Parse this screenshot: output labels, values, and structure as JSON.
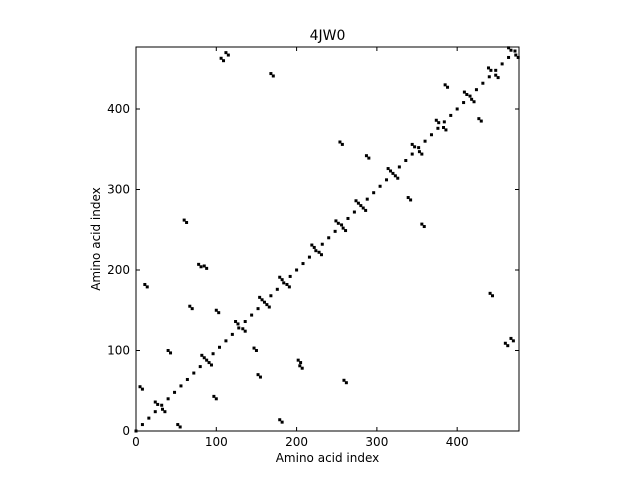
{
  "chart_data": {
    "type": "scatter",
    "title": "4JW0",
    "x_label": "Amino acid index",
    "y_label": "Amino acid index",
    "xlim": [
      0,
      477
    ],
    "ylim": [
      0,
      477
    ],
    "xticks": [
      0,
      100,
      200,
      300,
      400
    ],
    "yticks": [
      0,
      100,
      200,
      300,
      400
    ],
    "series": [
      {
        "color": "#000000",
        "x": [
          0,
          8,
          16,
          24,
          32,
          40,
          48,
          56,
          64,
          72,
          80,
          88,
          96,
          104,
          112,
          120,
          128,
          136,
          144,
          152,
          160,
          168,
          176,
          184,
          192,
          200,
          208,
          216,
          224,
          232,
          240,
          248,
          256,
          264,
          272,
          280,
          288,
          296,
          304,
          312,
          320,
          328,
          336,
          344,
          352,
          360,
          368,
          376,
          384,
          392,
          400,
          408,
          416,
          424,
          432,
          440,
          448,
          456,
          464,
          472,
          24,
          27,
          33,
          36,
          82,
          85,
          91,
          94,
          124,
          127,
          133,
          136,
          154,
          157,
          163,
          166,
          179,
          182,
          188,
          191,
          219,
          222,
          228,
          231,
          249,
          252,
          258,
          261,
          274,
          277,
          283,
          286,
          314,
          317,
          323,
          326,
          344,
          347,
          353,
          356,
          374,
          377,
          383,
          386,
          409,
          412,
          418,
          421,
          439,
          442,
          448,
          451,
          464,
          467,
          473,
          476,
          5,
          8,
          55,
          52,
          11,
          14,
          182,
          179,
          60,
          63,
          262,
          259,
          85,
          88,
          205,
          202,
          112,
          115,
          470,
          467,
          168,
          171,
          444,
          441,
          152,
          155,
          70,
          67,
          204,
          207,
          81,
          78,
          106,
          109,
          463,
          460,
          339,
          342,
          290,
          287,
          254,
          257,
          359,
          356,
          100,
          103,
          150,
          147,
          40,
          43,
          100,
          97,
          385,
          388,
          430,
          427
        ],
        "y": [
          0,
          8,
          16,
          24,
          32,
          40,
          48,
          56,
          64,
          72,
          80,
          88,
          96,
          104,
          112,
          120,
          128,
          136,
          144,
          152,
          160,
          168,
          176,
          184,
          192,
          200,
          208,
          216,
          224,
          232,
          240,
          248,
          256,
          264,
          272,
          280,
          288,
          296,
          304,
          312,
          320,
          328,
          336,
          344,
          352,
          360,
          368,
          376,
          384,
          392,
          400,
          408,
          416,
          424,
          432,
          440,
          448,
          456,
          464,
          472,
          36,
          33,
          27,
          24,
          94,
          91,
          85,
          82,
          136,
          133,
          127,
          124,
          166,
          163,
          157,
          154,
          191,
          188,
          182,
          179,
          231,
          228,
          222,
          219,
          261,
          258,
          252,
          249,
          286,
          283,
          277,
          274,
          326,
          323,
          317,
          314,
          356,
          353,
          347,
          344,
          386,
          383,
          377,
          374,
          421,
          418,
          412,
          409,
          451,
          448,
          442,
          439,
          476,
          473,
          467,
          464,
          55,
          52,
          5,
          8,
          182,
          179,
          11,
          14,
          262,
          259,
          60,
          63,
          205,
          202,
          85,
          88,
          470,
          467,
          112,
          115,
          444,
          441,
          168,
          171,
          70,
          67,
          152,
          155,
          81,
          78,
          204,
          207,
          463,
          460,
          106,
          109,
          290,
          287,
          339,
          342,
          359,
          356,
          254,
          257,
          150,
          147,
          100,
          103,
          100,
          97,
          40,
          43,
          430,
          427,
          385,
          388
        ]
      }
    ]
  }
}
